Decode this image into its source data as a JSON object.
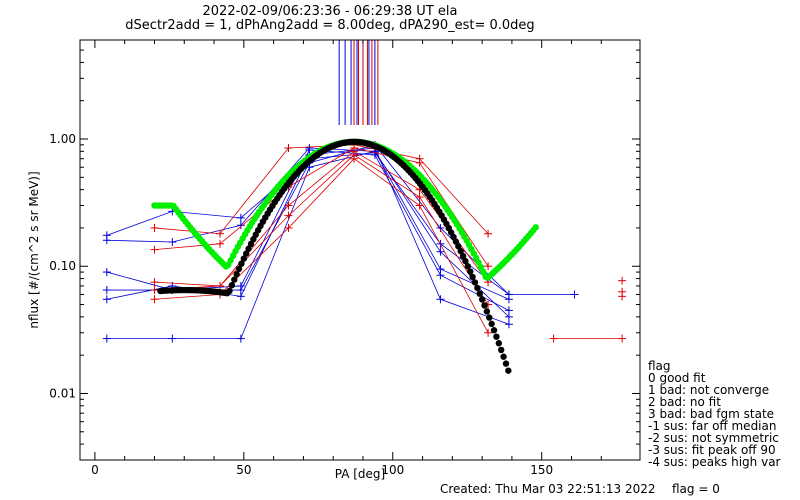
{
  "header": {
    "line1": "2022-02-09/06:23:36 - 06:29:38 UT ela",
    "line2": "dSectr2add = 1, dPhAng2add = 8.00deg, dPA290_est=    0.0deg"
  },
  "footer": {
    "created": "Created: Thu Mar 03 22:51:13 2022",
    "flag": "flag = 0"
  },
  "legend": {
    "title": "flag",
    "items": [
      " 0 good fit",
      " 1 bad: not converge",
      " 2 bad: no fit",
      " 3 bad: bad fgm state",
      "-1 sus: far off median",
      "-2 sus: not symmetric",
      "-3 sus: fit peak off 90",
      "-4 sus: peaks high var"
    ]
  },
  "colors": {
    "red": "#dd0000",
    "blue": "#0000dd",
    "green": "#00ee00",
    "black": "#000000"
  },
  "chart_data": {
    "type": "line",
    "xlabel": "PA [deg]",
    "ylabel": "nflux [#/(cm^2 s sr MeV)]",
    "xlim": [
      -5,
      183
    ],
    "ylim": [
      0.003,
      6
    ],
    "yscale": "log",
    "xticks": [
      0,
      50,
      100,
      150
    ],
    "yticks": [
      0.01,
      0.1,
      1.0
    ],
    "ytick_labels": [
      "0.01",
      "0.10",
      "1.00"
    ],
    "vlines": {
      "blue": [
        82,
        84,
        86,
        88,
        90,
        92,
        94
      ],
      "red": [
        87,
        88.5,
        90,
        91.5,
        93,
        95
      ]
    },
    "series": [
      {
        "color": "blue",
        "x": [
          4,
          26,
          49,
          72,
          94,
          116,
          139
        ],
        "y": [
          0.175,
          0.27,
          0.24,
          0.7,
          0.78,
          0.15,
          0.06
        ]
      },
      {
        "color": "blue",
        "x": [
          4,
          26,
          49,
          72,
          94,
          116,
          139
        ],
        "y": [
          0.16,
          0.155,
          0.21,
          0.85,
          0.8,
          0.095,
          0.055
        ]
      },
      {
        "color": "blue",
        "x": [
          4,
          26,
          49,
          72,
          94,
          116,
          139
        ],
        "y": [
          0.09,
          0.065,
          0.07,
          0.82,
          0.75,
          0.085,
          0.045
        ]
      },
      {
        "color": "blue",
        "x": [
          4,
          26,
          49,
          72,
          94,
          116,
          139
        ],
        "y": [
          0.055,
          0.07,
          0.058,
          0.75,
          0.85,
          0.055,
          0.035
        ]
      },
      {
        "color": "blue",
        "x": [
          4,
          26,
          49,
          72,
          94,
          116,
          139,
          161
        ],
        "y": [
          0.065,
          0.065,
          0.065,
          0.65,
          0.9,
          0.2,
          0.06,
          0.06
        ]
      },
      {
        "color": "blue",
        "x": [
          4,
          26,
          49,
          72,
          94,
          116,
          139
        ],
        "y": [
          0.027,
          0.027,
          0.027,
          0.6,
          0.8,
          0.13,
          0.04
        ]
      },
      {
        "color": "red",
        "x": [
          20,
          42,
          65,
          87,
          109,
          132
        ],
        "y": [
          0.2,
          0.18,
          0.85,
          0.9,
          0.7,
          0.18
        ]
      },
      {
        "color": "red",
        "x": [
          20,
          42,
          65,
          87,
          109,
          132
        ],
        "y": [
          0.135,
          0.15,
          0.42,
          0.85,
          0.65,
          0.1
        ]
      },
      {
        "color": "red",
        "x": [
          20,
          42,
          65,
          87,
          109,
          132
        ],
        "y": [
          0.075,
          0.07,
          0.3,
          0.8,
          0.4,
          0.075
        ]
      },
      {
        "color": "red",
        "x": [
          20,
          42,
          65,
          87,
          109,
          132
        ],
        "y": [
          0.065,
          0.07,
          0.25,
          0.75,
          0.35,
          0.05
        ]
      },
      {
        "color": "red",
        "x": [
          20,
          42,
          65,
          87,
          109,
          132
        ],
        "y": [
          0.055,
          0.06,
          0.2,
          0.7,
          0.3,
          0.03
        ]
      },
      {
        "color": "red",
        "x": [
          154,
          177
        ],
        "y": [
          0.027,
          0.027
        ]
      }
    ],
    "markers": [
      {
        "color": "red",
        "x": 177,
        "y": 0.077
      },
      {
        "color": "red",
        "x": 177,
        "y": 0.063
      },
      {
        "color": "red",
        "x": 177,
        "y": 0.058
      }
    ],
    "fit_curves": [
      {
        "color": "green",
        "x_start": 20,
        "x_end": 148,
        "x_peak": 87,
        "peak": 0.95,
        "width": 20
      },
      {
        "color": "black",
        "x_start": 22,
        "x_end": 139,
        "x_peak": 87,
        "peak": 0.95,
        "width": 18
      }
    ]
  }
}
